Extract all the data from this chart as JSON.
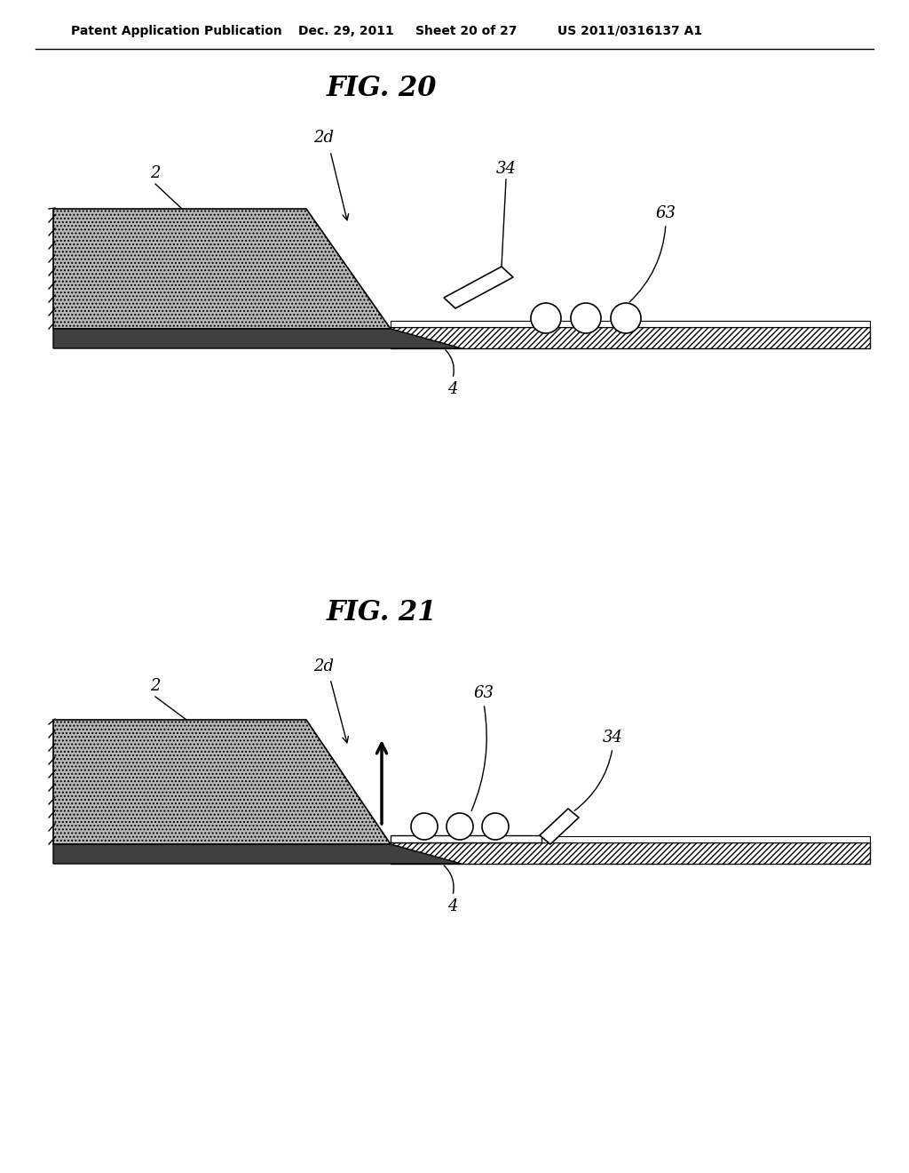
{
  "bg_color": "#ffffff",
  "header_text": "Patent Application Publication",
  "header_date": "Dec. 29, 2011",
  "header_sheet": "Sheet 20 of 27",
  "header_patent": "US 2011/0316137 A1",
  "fig20_title": "FIG. 20",
  "fig21_title": "FIG. 21",
  "label_color": "#000000",
  "hatch_color": "#000000",
  "fill_color": "#c8c8c8",
  "dot_fill": "#ffffff"
}
